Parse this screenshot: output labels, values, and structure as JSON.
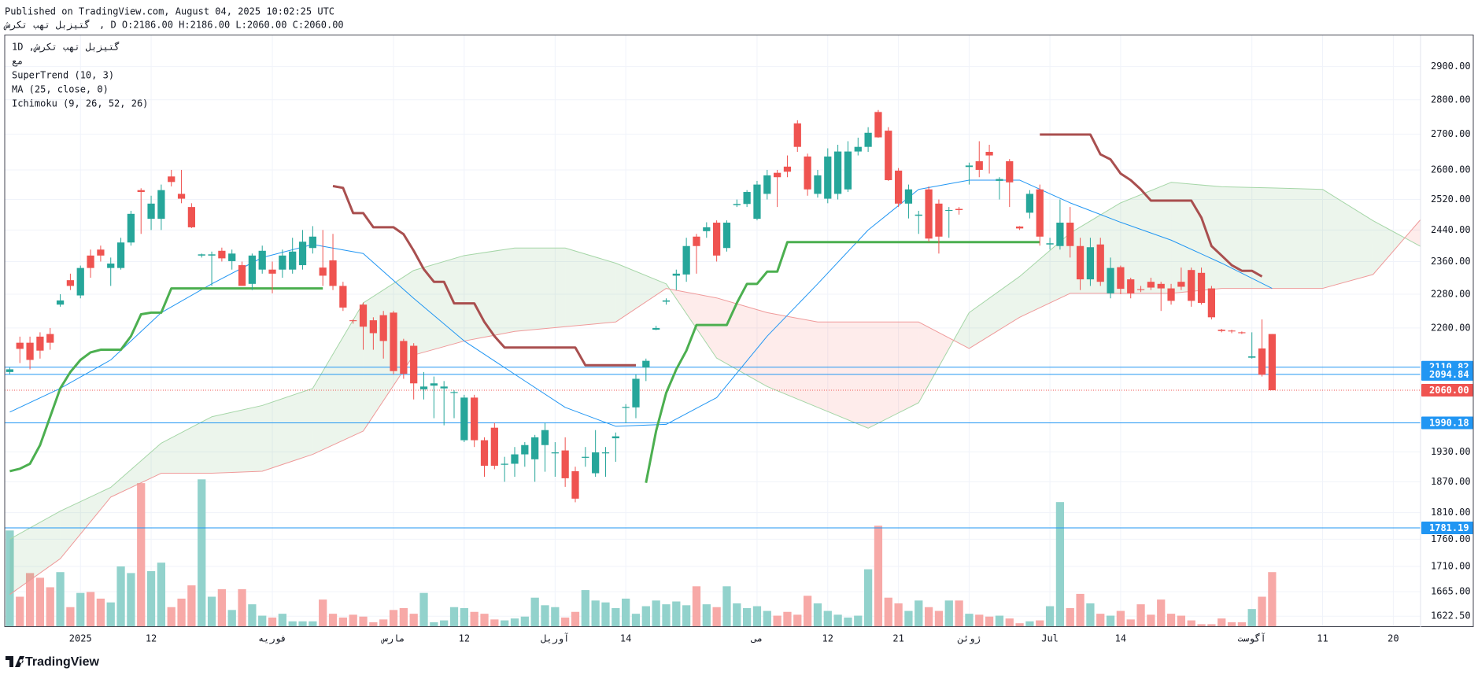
{
  "header": {
    "published": "Published on TradingView.com, August 04, 2025 10:02:25 UTC",
    "symbol": "گتیزبل تهب تکرش",
    "ohlc": ", D O:2186.00 H:2186.00 L:2060.00 C:2060.00"
  },
  "legend": [
    "1D ,گتیزبل تهب تکرش",
    "مع",
    "SuperTrend (10, 3)",
    "MA (25, close, 0)",
    "Ichimoku (9, 26, 52, 26)"
  ],
  "footer": {
    "brand": "TradingView"
  },
  "chart_data": {
    "type": "candlestick",
    "log_scale": true,
    "grid": true,
    "up_color": "#26a69a",
    "down_color": "#ef5350",
    "xlim": [
      -0.5,
      139.7
    ],
    "xticks": [
      {
        "value": 7,
        "label": "2025"
      },
      {
        "value": 14,
        "label": "12"
      },
      {
        "value": 26,
        "label": "فوریه"
      },
      {
        "value": 38,
        "label": "مارس"
      },
      {
        "value": 45,
        "label": "12"
      },
      {
        "value": 54,
        "label": "آوریل"
      },
      {
        "value": 61,
        "label": "14"
      },
      {
        "value": 74,
        "label": "می"
      },
      {
        "value": 81,
        "label": "12"
      },
      {
        "value": 88,
        "label": "21"
      },
      {
        "value": 95,
        "label": "ژوئن"
      },
      {
        "value": 103,
        "label": "Jul"
      },
      {
        "value": 110,
        "label": "14"
      },
      {
        "value": 123,
        "label": "آگوست"
      },
      {
        "value": 130,
        "label": "11"
      },
      {
        "value": 137,
        "label": "20"
      }
    ],
    "ylim": [
      1604,
      2997
    ],
    "yticks": [
      {
        "value": 2900,
        "label": "2900.00"
      },
      {
        "value": 2800,
        "label": "2800.00"
      },
      {
        "value": 2700,
        "label": "2700.00"
      },
      {
        "value": 2600,
        "label": "2600.00"
      },
      {
        "value": 2520,
        "label": "2520.00"
      },
      {
        "value": 2440,
        "label": "2440.00"
      },
      {
        "value": 2360,
        "label": "2360.00"
      },
      {
        "value": 2280,
        "label": "2280.00"
      },
      {
        "value": 2200,
        "label": "2200.00"
      },
      {
        "value": 1930,
        "label": "1930.00"
      },
      {
        "value": 1870,
        "label": "1870.00"
      },
      {
        "value": 1810,
        "label": "1810.00"
      },
      {
        "value": 1760,
        "label": "1760.00"
      },
      {
        "value": 1710,
        "label": "1710.00"
      },
      {
        "value": 1665,
        "label": "1665.00"
      },
      {
        "value": 1622.5,
        "label": "1622.50"
      }
    ],
    "open": [
      2100,
      2166,
      2166,
      2180,
      2186,
      2255,
      2314,
      2277,
      2375,
      2390,
      2344,
      2344,
      2408,
      2545,
      2469,
      2469,
      2582,
      2535,
      2500,
      2375,
      2375,
      2387,
      2361,
      2351,
      2305,
      2340,
      2340,
      2340,
      2340,
      2351,
      2394,
      2345,
      2363,
      2300,
      2218,
      2255,
      2218,
      2230,
      2236,
      2170,
      2159,
      2062,
      2070,
      2064,
      2054,
      1954,
      2044,
      1954,
      1980,
      1904,
      1906,
      1925,
      1915,
      1944,
      1927,
      1933,
      1891,
      1918,
      1887,
      1927,
      1958,
      2022,
      2023,
      2110,
      2196,
      2262,
      2325,
      2328,
      2423,
      2437,
      2459,
      2394,
      2505,
      2508,
      2469,
      2535,
      2592,
      2609,
      2731,
      2637,
      2535,
      2522,
      2535,
      2547,
      2651,
      2664,
      2764,
      2710,
      2598,
      2509,
      2477,
      2547,
      2509,
      2490,
      2495,
      2608,
      2624,
      2650,
      2570,
      2624,
      2449,
      2485,
      2547,
      2403,
      2399,
      2459,
      2399,
      2316,
      2403,
      2282,
      2346,
      2316,
      2292,
      2310,
      2305,
      2294,
      2310,
      2339,
      2332,
      2294,
      2196,
      2194,
      2190,
      2132,
      2153,
      2186
    ],
    "high": [
      2110,
      2180,
      2180,
      2190,
      2200,
      2280,
      2330,
      2350,
      2390,
      2400,
      2370,
      2420,
      2490,
      2550,
      2530,
      2560,
      2600,
      2600,
      2510,
      2380,
      2385,
      2395,
      2390,
      2360,
      2380,
      2400,
      2360,
      2390,
      2420,
      2440,
      2450,
      2440,
      2430,
      2310,
      2220,
      2260,
      2225,
      2240,
      2240,
      2175,
      2165,
      2100,
      2090,
      2080,
      2060,
      2050,
      2050,
      1960,
      1990,
      1920,
      1940,
      1950,
      1965,
      1990,
      1950,
      1960,
      1900,
      1940,
      1975,
      1940,
      1970,
      2030,
      2095,
      2130,
      2205,
      2270,
      2340,
      2420,
      2430,
      2460,
      2465,
      2465,
      2520,
      2545,
      2570,
      2600,
      2600,
      2640,
      2740,
      2645,
      2600,
      2660,
      2670,
      2680,
      2690,
      2720,
      2770,
      2720,
      2605,
      2560,
      2490,
      2555,
      2520,
      2500,
      2500,
      2620,
      2680,
      2670,
      2580,
      2630,
      2450,
      2545,
      2560,
      2420,
      2520,
      2500,
      2420,
      2420,
      2420,
      2370,
      2350,
      2320,
      2300,
      2320,
      2310,
      2305,
      2345,
      2345,
      2345,
      2300,
      2198,
      2196,
      2192,
      2190,
      2220,
      2186
    ],
    "low": [
      2095,
      2120,
      2106,
      2130,
      2150,
      2250,
      2290,
      2270,
      2320,
      2360,
      2300,
      2340,
      2400,
      2430,
      2440,
      2440,
      2555,
      2510,
      2445,
      2370,
      2300,
      2360,
      2340,
      2300,
      2290,
      2330,
      2282,
      2320,
      2330,
      2340,
      2380,
      2300,
      2290,
      2240,
      2210,
      2150,
      2150,
      2130,
      2095,
      2085,
      2040,
      2040,
      2000,
      1985,
      2000,
      1950,
      1940,
      1880,
      1895,
      1870,
      1880,
      1900,
      1870,
      1890,
      1880,
      1860,
      1830,
      1900,
      1880,
      1880,
      1910,
      1990,
      2000,
      2080,
      2195,
      2255,
      2290,
      2310,
      2330,
      2420,
      2360,
      2385,
      2500,
      2500,
      2465,
      2520,
      2500,
      2580,
      2650,
      2530,
      2525,
      2510,
      2520,
      2540,
      2640,
      2650,
      2690,
      2570,
      2500,
      2470,
      2430,
      2410,
      2380,
      2420,
      2480,
      2560,
      2580,
      2590,
      2520,
      2500,
      2440,
      2470,
      2400,
      2390,
      2390,
      2370,
      2290,
      2300,
      2300,
      2270,
      2280,
      2270,
      2285,
      2290,
      2240,
      2255,
      2290,
      2250,
      2255,
      2220,
      2190,
      2188,
      2186,
      2130,
      2090,
      2060
    ],
    "close": [
      2106,
      2152,
      2127,
      2148,
      2166,
      2265,
      2300,
      2344,
      2344,
      2375,
      2355,
      2408,
      2482,
      2540,
      2509,
      2545,
      2567,
      2522,
      2447,
      2378,
      2378,
      2368,
      2380,
      2300,
      2375,
      2387,
      2330,
      2375,
      2385,
      2410,
      2423,
      2325,
      2300,
      2248,
      2216,
      2203,
      2188,
      2170,
      2102,
      2096,
      2075,
      2068,
      2075,
      2068,
      2056,
      2044,
      1954,
      1902,
      1902,
      1906,
      1925,
      1944,
      1960,
      1975,
      1929,
      1877,
      1837,
      1920,
      1929,
      1929,
      1962,
      2024,
      2085,
      2125,
      2200,
      2265,
      2330,
      2399,
      2399,
      2447,
      2375,
      2459,
      2508,
      2540,
      2560,
      2585,
      2580,
      2595,
      2664,
      2547,
      2585,
      2637,
      2651,
      2651,
      2664,
      2704,
      2691,
      2572,
      2509,
      2547,
      2480,
      2418,
      2423,
      2492,
      2492,
      2612,
      2600,
      2640,
      2575,
      2566,
      2444,
      2535,
      2423,
      2406,
      2459,
      2399,
      2316,
      2396,
      2310,
      2344,
      2293,
      2282,
      2290,
      2296,
      2294,
      2264,
      2298,
      2264,
      2259,
      2225,
      2193,
      2192,
      2188,
      2135,
      2094,
      2060
    ],
    "volume": {
      "up_color": "#92d2cc",
      "down_color": "#f7a9a7",
      "lim": [
        0,
        625
      ],
      "values": [
        102,
        32,
        57,
        52,
        42,
        58,
        21,
        36,
        37,
        30,
        26,
        64,
        57,
        152,
        59,
        68,
        21,
        30,
        44,
        156,
        32,
        40,
        18,
        40,
        24,
        12,
        10,
        14,
        6,
        6,
        6,
        29,
        14,
        10,
        13,
        11,
        5,
        8,
        18,
        20,
        14,
        36,
        5,
        7,
        21,
        20,
        16,
        14,
        8,
        7,
        9,
        11,
        31,
        23,
        21,
        10,
        16,
        39,
        28,
        26,
        20,
        30,
        14,
        22,
        28,
        24,
        27,
        23,
        43,
        24,
        21,
        43,
        25,
        20,
        22,
        17,
        12,
        16,
        13,
        33,
        25,
        17,
        13,
        10,
        12,
        61,
        107,
        31,
        25,
        17,
        28,
        21,
        17,
        28,
        28,
        14,
        13,
        11,
        12,
        9,
        4,
        6,
        7,
        22,
        132,
        20,
        35,
        25,
        14,
        12,
        17,
        8,
        24,
        13,
        29,
        14,
        12,
        7,
        3,
        3,
        9,
        5,
        5,
        19,
        32,
        58
      ]
    },
    "supertrend": {
      "up": {
        "color": "#4caf50",
        "values": [
          1891,
          1896,
          1906,
          1944,
          2003,
          2064,
          2100,
          2127,
          2144,
          2150,
          2150,
          2150,
          2181,
          2232,
          2236,
          2236,
          2294,
          2294,
          2294,
          2294,
          2294,
          2294,
          2294,
          2294,
          2294,
          2294,
          2294,
          2294,
          2294,
          2294,
          2294,
          2294,
          null,
          null,
          null,
          null,
          null,
          null,
          null,
          null,
          null,
          null,
          null,
          null,
          null,
          null,
          null,
          null,
          null,
          null,
          null,
          null,
          null,
          null,
          null,
          null,
          null,
          null,
          null,
          null,
          null,
          null,
          null,
          1868,
          1973,
          2054,
          2106,
          2148,
          2207,
          2207,
          2207,
          2207,
          2259,
          2305,
          2305,
          2335,
          2335,
          2409,
          2409,
          2409,
          2409,
          2409,
          2409,
          2409,
          2409,
          2409,
          2409,
          2409,
          2409,
          2409,
          2409,
          2409,
          2409,
          2409,
          2409,
          2409,
          2409,
          2409,
          2409,
          2409,
          2409,
          2409,
          2409,
          null,
          null,
          null,
          null,
          null,
          null,
          null,
          null,
          null,
          null,
          null,
          null,
          null,
          null,
          null,
          null,
          null,
          null,
          null,
          null,
          null,
          null,
          null
        ]
      },
      "down": {
        "color": "#a94f4f",
        "values": [
          null,
          null,
          null,
          null,
          null,
          null,
          null,
          null,
          null,
          null,
          null,
          null,
          null,
          null,
          null,
          null,
          null,
          null,
          null,
          null,
          null,
          null,
          null,
          null,
          null,
          null,
          null,
          null,
          null,
          null,
          null,
          null,
          2556,
          2551,
          2484,
          2484,
          2447,
          2447,
          2447,
          2429,
          2387,
          2341,
          2310,
          2310,
          2258,
          2258,
          2258,
          2214,
          2181,
          2155,
          2155,
          2155,
          2155,
          2155,
          2155,
          2155,
          2155,
          2115,
          2115,
          2115,
          2115,
          2115,
          2115,
          null,
          null,
          null,
          null,
          null,
          null,
          null,
          null,
          null,
          null,
          null,
          null,
          null,
          null,
          null,
          null,
          null,
          null,
          null,
          null,
          null,
          null,
          null,
          null,
          null,
          null,
          null,
          null,
          null,
          null,
          null,
          null,
          null,
          null,
          null,
          null,
          null,
          null,
          null,
          2699,
          2699,
          2699,
          2699,
          2699,
          2699,
          2643,
          2629,
          2590,
          2572,
          2547,
          2517,
          2517,
          2517,
          2517,
          2517,
          2472,
          2399,
          2375,
          2351,
          2337,
          2337,
          2323
        ]
      }
    },
    "ma": {
      "color": "#2196f3",
      "x": [
        0,
        5,
        10,
        15,
        20,
        25,
        30,
        35,
        40,
        45,
        50,
        55,
        60,
        65,
        70,
        75,
        80,
        85,
        90,
        95,
        100,
        105,
        110,
        115,
        120,
        125
      ],
      "values": [
        2013,
        2064,
        2127,
        2236,
        2305,
        2370,
        2403,
        2380,
        2270,
        2170,
        2095,
        2023,
        1983,
        1987,
        2044,
        2181,
        2305,
        2440,
        2547,
        2572,
        2572,
        2511,
        2460,
        2414,
        2356,
        2294
      ]
    },
    "ichimoku": {
      "x": [
        0,
        5,
        10,
        15,
        20,
        25,
        30,
        35,
        40,
        45,
        50,
        55,
        60,
        65,
        70,
        75,
        80,
        85,
        90,
        95,
        100,
        105,
        110,
        115,
        120,
        125,
        130,
        135,
        140
      ],
      "span_a": [
        1760,
        1813,
        1859,
        1948,
        2003,
        2027,
        2064,
        2259,
        2338,
        2375,
        2394,
        2394,
        2356,
        2305,
        2131,
        2068,
        2023,
        1979,
        2033,
        2236,
        2323,
        2432,
        2511,
        2566,
        2554,
        2551,
        2547,
        2464,
        2394
      ],
      "span_b": [
        1660,
        1724,
        1840,
        1887,
        1887,
        1891,
        1925,
        1973,
        2138,
        2170,
        2192,
        2203,
        2214,
        2294,
        2271,
        2236,
        2214,
        2214,
        2214,
        2153,
        2225,
        2282,
        2282,
        2282,
        2294,
        2294,
        2294,
        2328,
        2476
      ],
      "a_color": "#a5d6a7",
      "b_color": "#ef9a9a",
      "up_fill": "rgba(67,160,71,0.1)",
      "down_fill": "rgba(244,67,54,0.1)"
    },
    "price_lines": [
      {
        "value": 2110.82,
        "color": "#2196f3",
        "style": "solid"
      },
      {
        "value": 2094.84,
        "color": "#2196f3",
        "style": "solid"
      },
      {
        "value": 2060,
        "label": "2060.00",
        "color": "#ef5350",
        "style": "dotted"
      },
      {
        "value": 1990.18,
        "color": "#2196f3",
        "style": "solid"
      },
      {
        "value": 1781.19,
        "color": "#2196f3",
        "style": "solid"
      }
    ]
  }
}
